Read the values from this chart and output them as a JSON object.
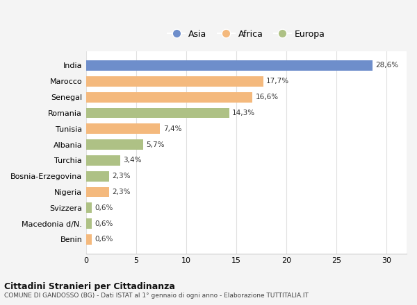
{
  "countries": [
    "India",
    "Marocco",
    "Senegal",
    "Romania",
    "Tunisia",
    "Albania",
    "Turchia",
    "Bosnia-Erzegovina",
    "Nigeria",
    "Svizzera",
    "Macedonia d/N.",
    "Benin"
  ],
  "values": [
    28.6,
    17.7,
    16.6,
    14.3,
    7.4,
    5.7,
    3.4,
    2.3,
    2.3,
    0.6,
    0.6,
    0.6
  ],
  "labels": [
    "28,6%",
    "17,7%",
    "16,6%",
    "14,3%",
    "7,4%",
    "5,7%",
    "3,4%",
    "2,3%",
    "2,3%",
    "0,6%",
    "0,6%",
    "0,6%"
  ],
  "categories": [
    "Asia",
    "Africa",
    "Africa",
    "Europa",
    "Africa",
    "Europa",
    "Europa",
    "Europa",
    "Africa",
    "Europa",
    "Europa",
    "Africa"
  ],
  "colors": {
    "Asia": "#6e8ecb",
    "Africa": "#f4b97d",
    "Europa": "#aec185"
  },
  "xlim": [
    0,
    32
  ],
  "xticks": [
    0,
    5,
    10,
    15,
    20,
    25,
    30
  ],
  "title": "Cittadini Stranieri per Cittadinanza",
  "subtitle": "COMUNE DI GANDOSSO (BG) - Dati ISTAT al 1° gennaio di ogni anno - Elaborazione TUTTITALIA.IT",
  "background_color": "#f4f4f4",
  "plot_background": "#ffffff",
  "grid_color": "#e0e0e0"
}
